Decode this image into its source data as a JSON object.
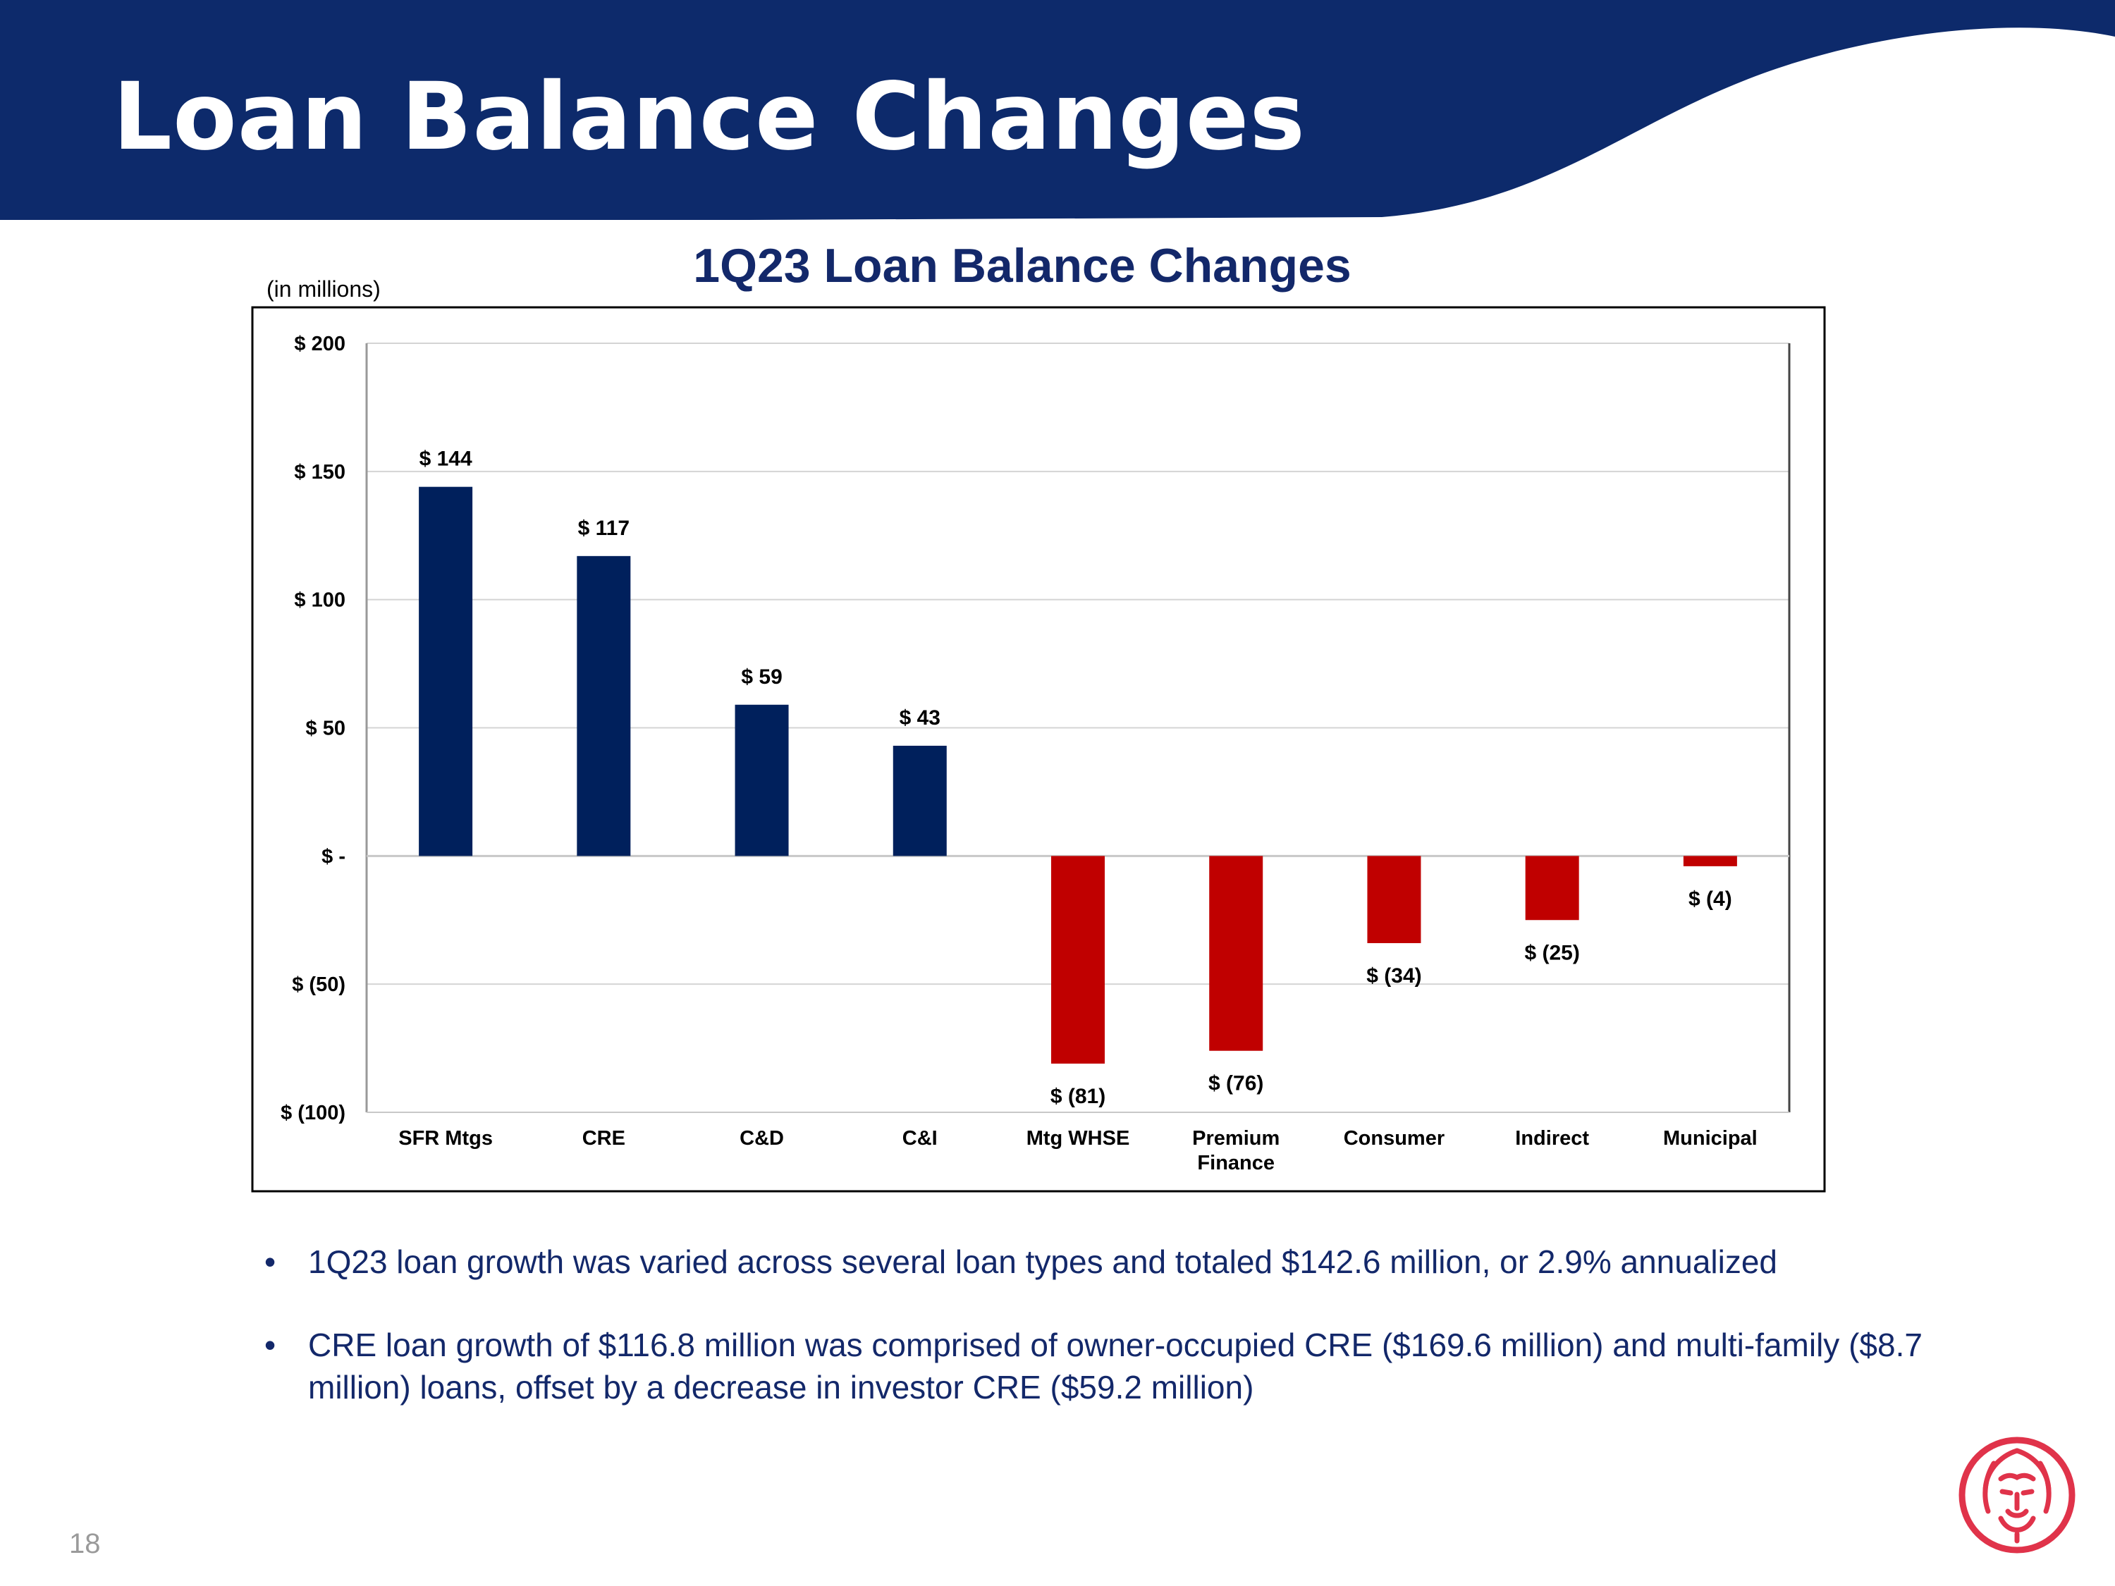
{
  "slide": {
    "title": "Loan Balance Changes",
    "page_number": "18",
    "colors": {
      "header": "#0d2a6b",
      "positive": "#00205c",
      "negative": "#c00000",
      "text_blue": "#13286a",
      "logo": "#e0334a"
    },
    "logo_icon": "lion-head-icon"
  },
  "chart_data": {
    "type": "bar",
    "title": "1Q23 Loan Balance Changes",
    "unit_label": "(in millions)",
    "categories": [
      "SFR Mtgs",
      "CRE",
      "C&D",
      "C&I",
      "Mtg WHSE",
      "Premium Finance",
      "Consumer",
      "Indirect",
      "Municipal"
    ],
    "category_lines": [
      [
        "SFR Mtgs"
      ],
      [
        "CRE"
      ],
      [
        "C&D"
      ],
      [
        "C&I"
      ],
      [
        "Mtg WHSE"
      ],
      [
        "Premium",
        "Finance"
      ],
      [
        "Consumer"
      ],
      [
        "Indirect"
      ],
      [
        "Municipal"
      ]
    ],
    "values": [
      144,
      117,
      59,
      43,
      -81,
      -76,
      -34,
      -25,
      -4
    ],
    "value_labels": [
      "$ 144",
      "$ 117",
      "$ 59",
      "$ 43",
      "$ (81)",
      "$ (76)",
      "$ (34)",
      "$ (25)",
      "$ (4)"
    ],
    "ylim": [
      -100,
      200
    ],
    "yticks": [
      200,
      150,
      100,
      50,
      0,
      -50,
      -100
    ],
    "ytick_labels": [
      "$ 200",
      "$ 150",
      "$ 100",
      "$ 50",
      "$ -",
      "$ (50)",
      "$ (100)"
    ],
    "grid": true,
    "legend": "none"
  },
  "bullets": [
    "1Q23 loan growth was varied across several loan types and totaled $142.6 million, or 2.9% annualized",
    "CRE loan growth of $116.8 million was comprised of owner-occupied CRE ($169.6 million) and multi-family ($8.7 million) loans, offset by a decrease in investor CRE ($59.2 million)"
  ]
}
